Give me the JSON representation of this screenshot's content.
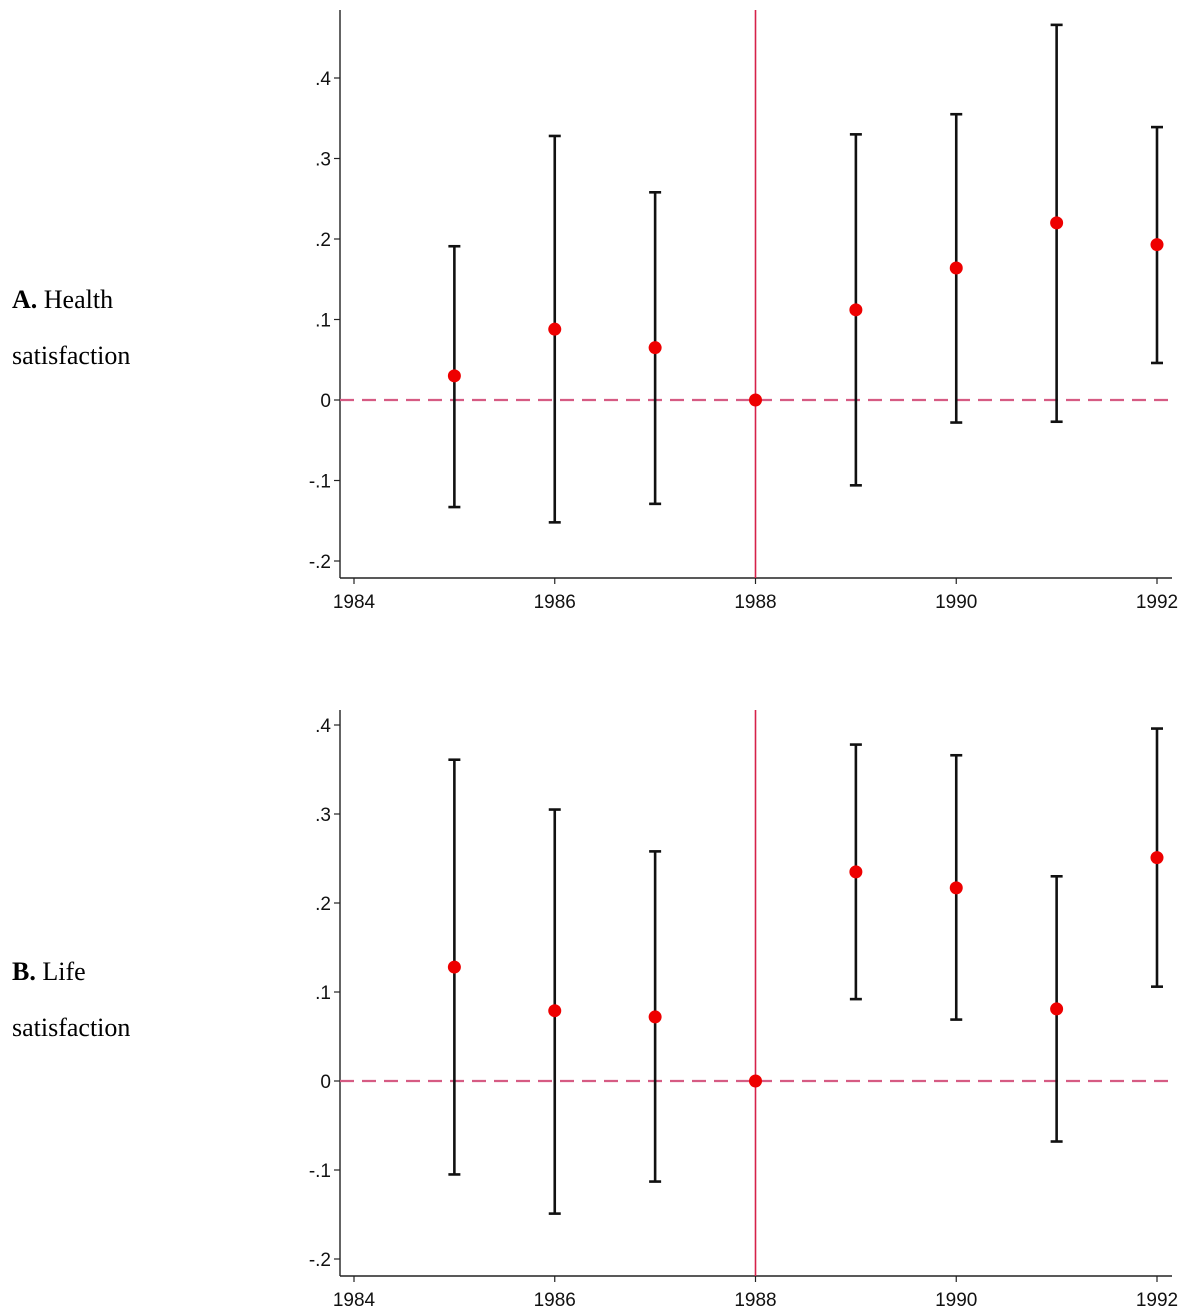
{
  "panels": [
    {
      "letter": "A.",
      "label_line1": "Health",
      "label_line2": "satisfaction"
    },
    {
      "letter": "B.",
      "label_line1": "Life",
      "label_line2": "satisfaction"
    }
  ],
  "colors": {
    "ci_bar": "#111111",
    "point": "#ee0000",
    "event_line": "#d6224a",
    "zero_line": "#d65b83",
    "axis": "#222222"
  },
  "chart_data": [
    {
      "type": "scatter",
      "title": "",
      "xlabel": "",
      "ylabel": "",
      "xlim": [
        1984,
        1992
      ],
      "ylim": [
        -0.2,
        0.4
      ],
      "xticks": [
        1984,
        1986,
        1988,
        1990,
        1992
      ],
      "xtick_labels": [
        "1984",
        "1986",
        "1988",
        "1990",
        "1992"
      ],
      "yticks": [
        -0.2,
        -0.1,
        0,
        0.1,
        0.2,
        0.3,
        0.4
      ],
      "ytick_labels": [
        "-.2",
        "-.1",
        "0",
        ".1",
        ".2",
        ".3",
        ".4"
      ],
      "reference_vertical_x": 1988,
      "reference_horizontal_y": 0,
      "points": [
        {
          "x": 1985,
          "y": 0.03,
          "lo": -0.133,
          "hi": 0.191
        },
        {
          "x": 1986,
          "y": 0.088,
          "lo": -0.152,
          "hi": 0.328
        },
        {
          "x": 1987,
          "y": 0.065,
          "lo": -0.129,
          "hi": 0.258
        },
        {
          "x": 1988,
          "y": 0.0,
          "lo": 0.0,
          "hi": 0.0
        },
        {
          "x": 1989,
          "y": 0.112,
          "lo": -0.106,
          "hi": 0.33
        },
        {
          "x": 1990,
          "y": 0.164,
          "lo": -0.028,
          "hi": 0.355
        },
        {
          "x": 1991,
          "y": 0.22,
          "lo": -0.027,
          "hi": 0.466
        },
        {
          "x": 1992,
          "y": 0.193,
          "lo": 0.046,
          "hi": 0.339
        }
      ]
    },
    {
      "type": "scatter",
      "title": "",
      "xlabel": "",
      "ylabel": "",
      "xlim": [
        1984,
        1992
      ],
      "ylim": [
        -0.2,
        0.4
      ],
      "xticks": [
        1984,
        1986,
        1988,
        1990,
        1992
      ],
      "xtick_labels": [
        "1984",
        "1986",
        "1988",
        "1990",
        "1992"
      ],
      "yticks": [
        -0.2,
        -0.1,
        0,
        0.1,
        0.2,
        0.3,
        0.4
      ],
      "ytick_labels": [
        "-.2",
        "-.1",
        "0",
        ".1",
        ".2",
        ".3",
        ".4"
      ],
      "reference_vertical_x": 1988,
      "reference_horizontal_y": 0,
      "points": [
        {
          "x": 1985,
          "y": 0.128,
          "lo": -0.105,
          "hi": 0.361
        },
        {
          "x": 1986,
          "y": 0.079,
          "lo": -0.149,
          "hi": 0.305
        },
        {
          "x": 1987,
          "y": 0.072,
          "lo": -0.113,
          "hi": 0.258
        },
        {
          "x": 1988,
          "y": 0.0,
          "lo": 0.0,
          "hi": 0.0
        },
        {
          "x": 1989,
          "y": 0.235,
          "lo": 0.092,
          "hi": 0.378
        },
        {
          "x": 1990,
          "y": 0.217,
          "lo": 0.069,
          "hi": 0.366
        },
        {
          "x": 1991,
          "y": 0.081,
          "lo": -0.068,
          "hi": 0.23
        },
        {
          "x": 1992,
          "y": 0.251,
          "lo": 0.106,
          "hi": 0.396
        }
      ]
    }
  ]
}
